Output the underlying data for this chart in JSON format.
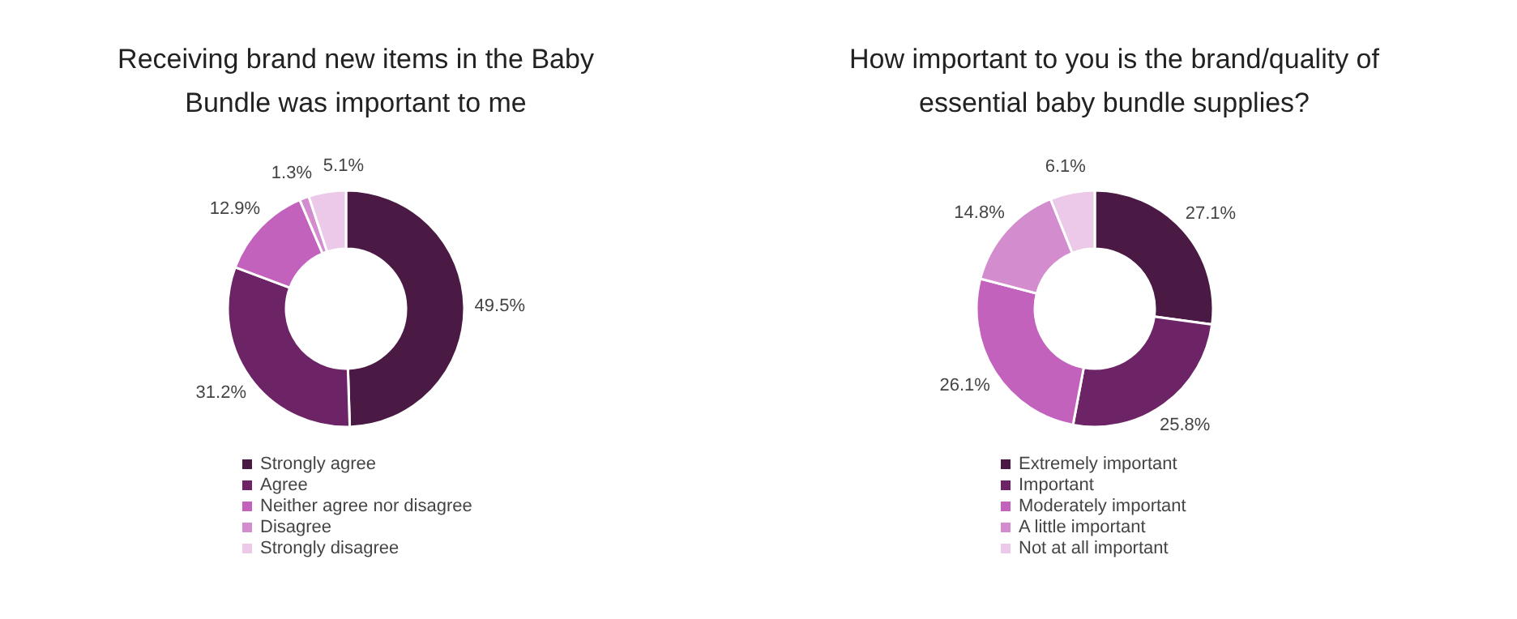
{
  "chart_data": [
    {
      "type": "donut",
      "title": "Receiving brand new items in the Baby Bundle was important to me",
      "categories": [
        "Strongly agree",
        "Agree",
        "Neither agree nor disagree",
        "Disagree",
        "Strongly disagree"
      ],
      "values": [
        49.5,
        31.2,
        12.9,
        1.3,
        5.1
      ],
      "value_labels": [
        "49.5%",
        "31.2%",
        "12.9%",
        "1.3%",
        "5.1%"
      ],
      "colors": [
        "#4a1a45",
        "#6d2466",
        "#c262bd",
        "#d38ccd",
        "#ecc9e8"
      ],
      "legend": "bottom"
    },
    {
      "type": "donut",
      "title": "How important to you is the brand/quality of essential baby bundle supplies?",
      "categories": [
        "Extremely important",
        "Important",
        "Moderately important",
        "A little important",
        "Not at all important"
      ],
      "values": [
        27.1,
        25.8,
        26.1,
        14.8,
        6.1
      ],
      "value_labels": [
        "27.1%",
        "25.8%",
        "26.1%",
        "14.8%",
        "6.1%"
      ],
      "colors": [
        "#4a1a45",
        "#6d2466",
        "#c262bd",
        "#d38ccd",
        "#ecc9e8"
      ],
      "legend": "bottom"
    }
  ]
}
